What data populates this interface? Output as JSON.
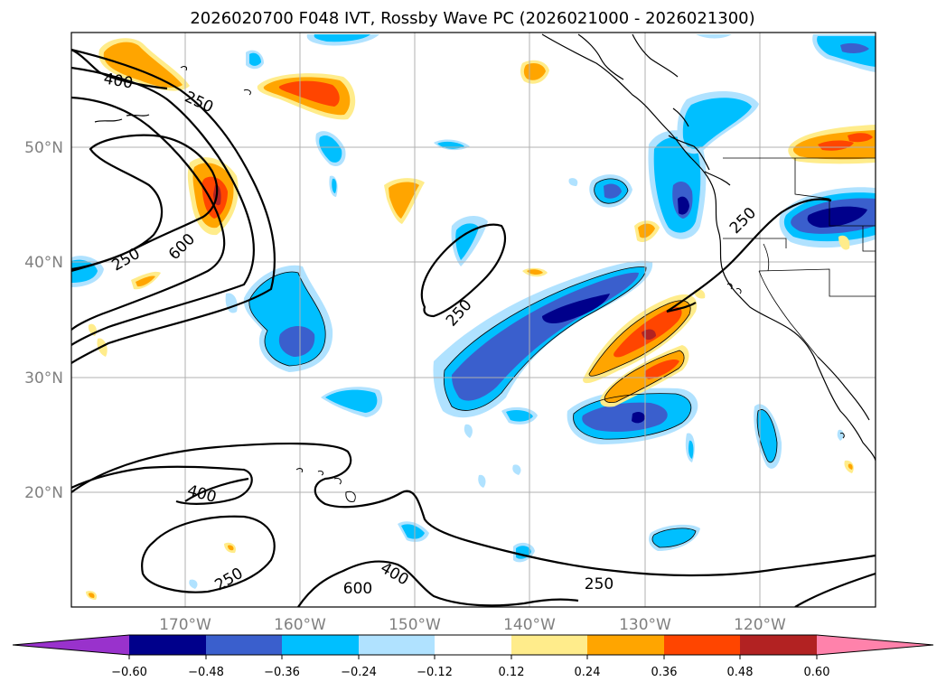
{
  "map": {
    "title": "2026020700 F048 IVT, Rossby Wave PC (2026021000 - 2026021300)",
    "lat_labels": [
      "50°N",
      "40°N",
      "30°N",
      "20°N"
    ],
    "lon_labels": [
      "170°W",
      "160°W",
      "150°W",
      "140°W",
      "130°W",
      "120°W"
    ],
    "contour_labels": [
      "400",
      "250",
      "250",
      "600",
      "250",
      "250",
      "400",
      "250",
      "400",
      "600",
      "250"
    ]
  },
  "colorbar": {
    "tick_labels": [
      "−0.60",
      "−0.48",
      "−0.36",
      "−0.24",
      "−0.12",
      "0.12",
      "0.24",
      "0.36",
      "0.48",
      "0.60"
    ],
    "colors": [
      "#9932cc",
      "#00008b",
      "#3a5fcd",
      "#00bfff",
      "#b0e2ff",
      "#ffffff",
      "#ffec8b",
      "#ffa500",
      "#ff4500",
      "#b22222",
      "#ff82ab"
    ]
  }
}
